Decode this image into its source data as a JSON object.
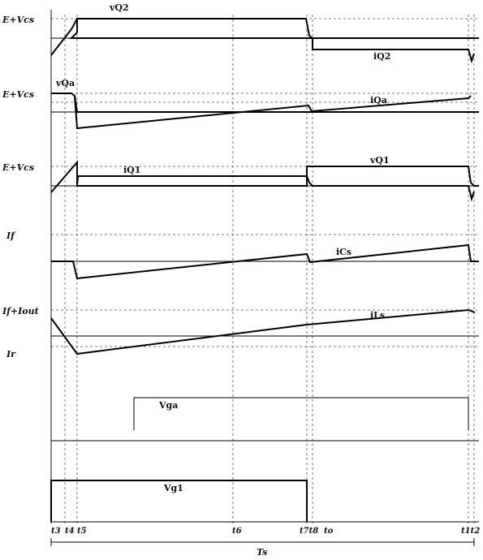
{
  "level_labels": {
    "p1": "E+Vcs",
    "p2": "E+Vcs",
    "p3": "E+Vcs",
    "p4": "If",
    "p5_top": "If+Iout",
    "p5_bottom": "Ir"
  },
  "signal_labels": {
    "vq2": "vQ2",
    "iq2": "iQ2",
    "vqa": "vQa",
    "iqa": "iQa",
    "iq1": "iQ1",
    "vq1": "vQ1",
    "ics": "iCs",
    "ils": "iLs",
    "vga": "Vga",
    "vg1": "Vg1"
  },
  "time_labels": {
    "t3": "t3",
    "t4": "t4",
    "t5": "t5",
    "t6": "t6",
    "t7t8": "t7t8",
    "to": "to",
    "t1t2": "t1t2"
  },
  "period_label": "Ts"
}
